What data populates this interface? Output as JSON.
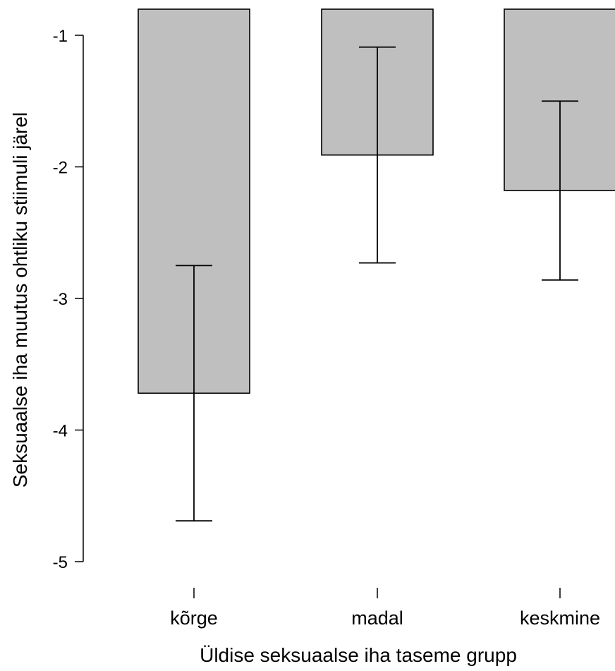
{
  "chart_data": {
    "type": "bar",
    "title": "",
    "xlabel": "Üldise seksuaalse iha taseme grupp",
    "ylabel": "Seksuaalse iha muutus ohtliku stiimuli järel",
    "categories": [
      "kõrge",
      "madal",
      "keskmine"
    ],
    "values": [
      -3.72,
      -1.91,
      -2.18
    ],
    "error_bars": [
      {
        "low": -4.69,
        "high": -2.75
      },
      {
        "low": -2.73,
        "high": -1.09
      },
      {
        "low": -2.86,
        "high": -1.5
      }
    ],
    "ylim": [
      -5,
      -1
    ],
    "yticks": [
      "-1",
      "-2",
      "-3",
      "-4",
      "-5"
    ],
    "ytick_values": [
      -1,
      -2,
      -3,
      -4,
      -5
    ],
    "bar_color": "#bfbfbf",
    "grid": false,
    "legend": "none"
  }
}
